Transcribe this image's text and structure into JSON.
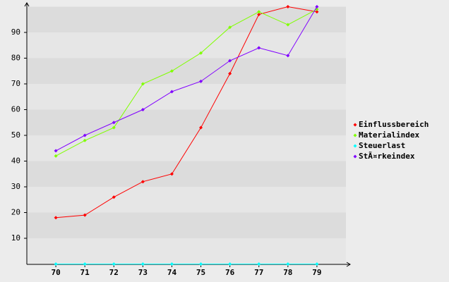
{
  "chart_data": {
    "type": "line",
    "categories": [
      "70",
      "71",
      "72",
      "73",
      "74",
      "75",
      "76",
      "77",
      "78",
      "79"
    ],
    "series": [
      {
        "name": "Einflussbereich",
        "color": "#ff0000",
        "values": [
          18,
          19,
          26,
          32,
          35,
          53,
          74,
          97,
          100,
          98
        ]
      },
      {
        "name": "Materialindex",
        "color": "#80ff00",
        "values": [
          42,
          48,
          53,
          70,
          75,
          82,
          92,
          98,
          93,
          99
        ]
      },
      {
        "name": "Steuerlast",
        "color": "#00ffff",
        "values": [
          0,
          0,
          0,
          0,
          0,
          0,
          0,
          0,
          0,
          0
        ]
      },
      {
        "name": "StÃ¤rkeindex",
        "color": "#8000ff",
        "values": [
          44,
          50,
          55,
          60,
          67,
          71,
          79,
          84,
          81,
          100
        ]
      }
    ],
    "ylim": [
      0,
      100
    ],
    "yticks": [
      10,
      20,
      30,
      40,
      50,
      60,
      70,
      80,
      90
    ],
    "grid": true,
    "legend": "right"
  }
}
